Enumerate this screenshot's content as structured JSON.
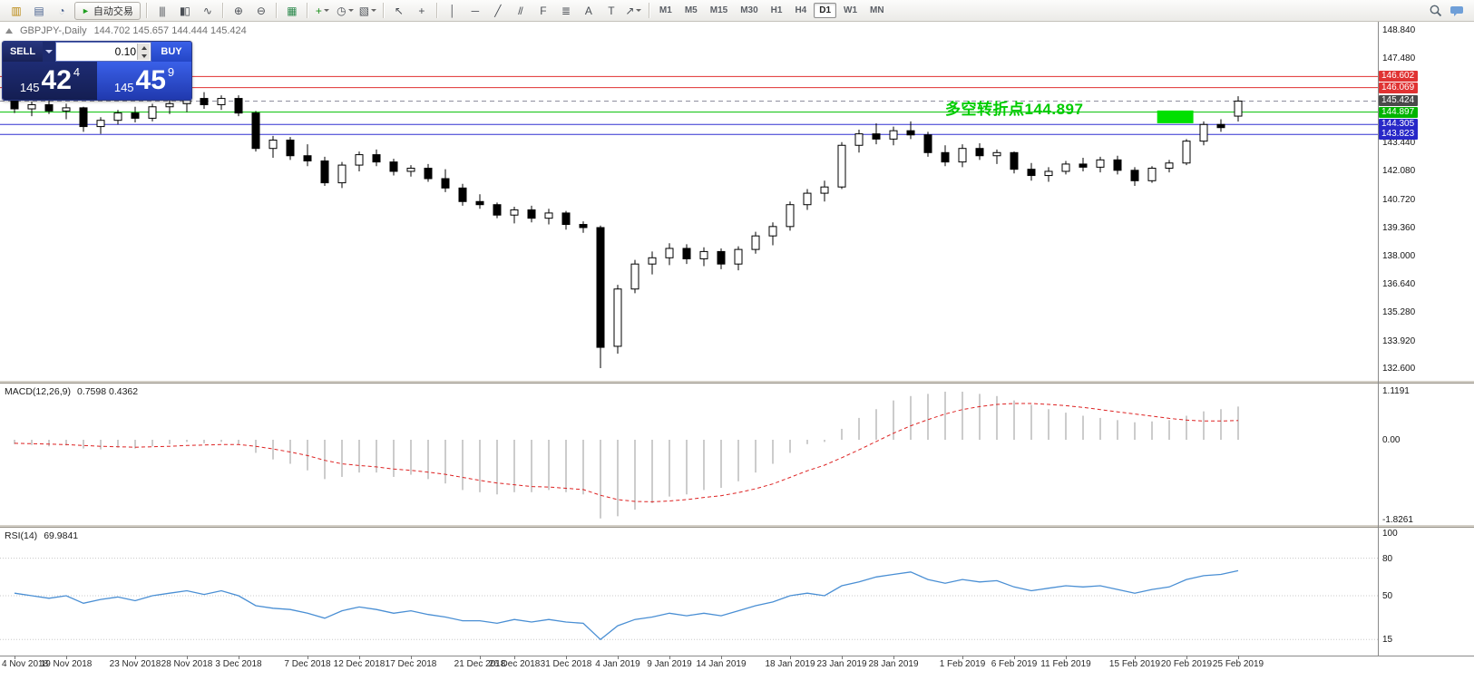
{
  "toolbar": {
    "autotrading": {
      "label": "自动交易",
      "glyph": "►"
    },
    "groups": [
      [
        {
          "name": "new-chart-icon",
          "glyph": "▥",
          "color": "#b8860b"
        },
        {
          "name": "profiles-icon",
          "glyph": "▤",
          "color": "#4a6390"
        },
        {
          "name": "refresh-icon",
          "glyph": "◔",
          "color": "#4a6390"
        },
        {
          "name": "autotrading-button",
          "type": "autotrading"
        }
      ],
      [
        {
          "name": "bar-chart-icon",
          "glyph": "|||"
        },
        {
          "name": "candlestick-chart-icon",
          "glyph": "▮▯"
        },
        {
          "name": "line-chart-icon",
          "glyph": "∿"
        }
      ],
      [
        {
          "name": "zoom-in-icon",
          "glyph": "⊕"
        },
        {
          "name": "zoom-out-icon",
          "glyph": "⊖"
        }
      ],
      [
        {
          "name": "tile-windows-icon",
          "glyph": "▦",
          "color": "#2d8a4e"
        }
      ],
      [
        {
          "name": "indicators-icon",
          "glyph": "+",
          "color": "#1a8f1a",
          "dd": true
        },
        {
          "name": "periods-icon",
          "glyph": "◷",
          "dd": true
        },
        {
          "name": "templates-icon",
          "glyph": "▧",
          "dd": true
        }
      ],
      [
        {
          "name": "cursor-icon",
          "glyph": "↖"
        },
        {
          "name": "crosshair-icon",
          "glyph": "+"
        }
      ],
      [
        {
          "name": "vertical-line-icon",
          "glyph": "│"
        },
        {
          "name": "horizontal-line-icon",
          "glyph": "─"
        },
        {
          "name": "trendline-icon",
          "glyph": "╱"
        },
        {
          "name": "channel-icon",
          "glyph": "//"
        },
        {
          "name": "fibonacci-icon",
          "glyph": "F"
        },
        {
          "name": "objects-grid-icon",
          "glyph": "≣"
        },
        {
          "name": "text-icon",
          "glyph": "A"
        },
        {
          "name": "text-label-icon",
          "glyph": "T"
        },
        {
          "name": "arrows-icon",
          "glyph": "↗",
          "dd": true
        }
      ]
    ],
    "timeframes": [
      "M1",
      "M5",
      "M15",
      "M30",
      "H1",
      "H4",
      "D1",
      "W1",
      "MN"
    ],
    "active_timeframe": "D1",
    "right_icons": [
      {
        "name": "search-icon",
        "svg": "magnifier"
      },
      {
        "name": "community-chat-icon",
        "svg": "bubble"
      }
    ]
  },
  "chart": {
    "header": {
      "symbol": "GBPJPY-,Daily",
      "ohlc": "144.702 145.657 144.444 145.424"
    }
  },
  "trade_panel": {
    "sell_label": "SELL",
    "buy_label": "BUY",
    "volume": "0.10",
    "sell_price": {
      "prefix": "145",
      "big": "42",
      "sup": "4"
    },
    "buy_price": {
      "prefix": "145",
      "big": "45",
      "sup": "9"
    }
  },
  "chart_data": {
    "type": "candlestick",
    "title": "GBPJPY- Daily",
    "y_axis_labels": [
      "148.840",
      "147.480",
      "146.120",
      "144.760",
      "143.440",
      "142.080",
      "140.720",
      "139.360",
      "138.000",
      "136.640",
      "135.280",
      "133.920",
      "132.600"
    ],
    "y_range": [
      132.42,
      149.0
    ],
    "grid": false,
    "date_labels": [
      {
        "text": "4 Nov 2018",
        "i": 0
      },
      {
        "text": "19 Nov 2018",
        "i": 3
      },
      {
        "text": "23 Nov 2018",
        "i": 7
      },
      {
        "text": "28 Nov 2018",
        "i": 10
      },
      {
        "text": "3 Dec 2018",
        "i": 13
      },
      {
        "text": "7 Dec 2018",
        "i": 17
      },
      {
        "text": "12 Dec 2018",
        "i": 20
      },
      {
        "text": "17 Dec 2018",
        "i": 23
      },
      {
        "text": "21 Dec 2018",
        "i": 27
      },
      {
        "text": "26 Dec 2018",
        "i": 29
      },
      {
        "text": "31 Dec 2018",
        "i": 32
      },
      {
        "text": "4 Jan 2019",
        "i": 35
      },
      {
        "text": "9 Jan 2019",
        "i": 38
      },
      {
        "text": "14 Jan 2019",
        "i": 41
      },
      {
        "text": "18 Jan 2019",
        "i": 45
      },
      {
        "text": "23 Jan 2019",
        "i": 48
      },
      {
        "text": "28 Jan 2019",
        "i": 51
      },
      {
        "text": "1 Feb 2019",
        "i": 55
      },
      {
        "text": "6 Feb 2019",
        "i": 58
      },
      {
        "text": "11 Feb 2019",
        "i": 61
      },
      {
        "text": "15 Feb 2019",
        "i": 65
      },
      {
        "text": "20 Feb 2019",
        "i": 68
      },
      {
        "text": "25 Feb 2019",
        "i": 71
      }
    ],
    "candles": [
      [
        145.7,
        145.8,
        144.85,
        145.05
      ],
      [
        145.05,
        145.4,
        144.7,
        145.25
      ],
      [
        145.25,
        145.45,
        144.8,
        144.95
      ],
      [
        144.95,
        145.3,
        144.55,
        145.1
      ],
      [
        145.1,
        145.15,
        143.95,
        144.2
      ],
      [
        144.2,
        144.65,
        143.85,
        144.5
      ],
      [
        144.5,
        145.0,
        144.3,
        144.85
      ],
      [
        144.85,
        145.15,
        144.4,
        144.6
      ],
      [
        144.6,
        145.3,
        144.45,
        145.15
      ],
      [
        145.15,
        145.5,
        144.8,
        145.3
      ],
      [
        145.3,
        145.75,
        144.9,
        145.55
      ],
      [
        145.55,
        145.85,
        145.05,
        145.25
      ],
      [
        145.25,
        145.7,
        145.0,
        145.55
      ],
      [
        145.55,
        145.7,
        144.7,
        144.85
      ],
      [
        144.85,
        144.95,
        143.0,
        143.15
      ],
      [
        143.15,
        143.75,
        142.7,
        143.55
      ],
      [
        143.55,
        143.7,
        142.6,
        142.8
      ],
      [
        142.8,
        143.35,
        142.3,
        142.55
      ],
      [
        142.55,
        142.75,
        141.35,
        141.5
      ],
      [
        141.5,
        142.5,
        141.25,
        142.35
      ],
      [
        142.35,
        143.0,
        142.05,
        142.85
      ],
      [
        142.85,
        143.1,
        142.3,
        142.5
      ],
      [
        142.5,
        142.65,
        141.85,
        142.05
      ],
      [
        142.05,
        142.35,
        141.8,
        142.2
      ],
      [
        142.2,
        142.4,
        141.55,
        141.7
      ],
      [
        141.7,
        142.15,
        141.05,
        141.25
      ],
      [
        141.25,
        141.45,
        140.4,
        140.6
      ],
      [
        140.6,
        140.95,
        140.25,
        140.45
      ],
      [
        140.45,
        140.55,
        139.8,
        139.95
      ],
      [
        139.95,
        140.35,
        139.55,
        140.2
      ],
      [
        140.2,
        140.4,
        139.6,
        139.8
      ],
      [
        139.8,
        140.25,
        139.5,
        140.05
      ],
      [
        140.05,
        140.15,
        139.25,
        139.5
      ],
      [
        139.5,
        139.65,
        139.1,
        139.35
      ],
      [
        139.35,
        139.45,
        132.6,
        133.6
      ],
      [
        133.65,
        136.6,
        133.3,
        136.4
      ],
      [
        136.4,
        137.8,
        136.2,
        137.6
      ],
      [
        137.6,
        138.2,
        137.1,
        137.9
      ],
      [
        137.9,
        138.6,
        137.55,
        138.35
      ],
      [
        138.35,
        138.55,
        137.6,
        137.85
      ],
      [
        137.85,
        138.4,
        137.5,
        138.2
      ],
      [
        138.2,
        138.35,
        137.35,
        137.6
      ],
      [
        137.6,
        138.45,
        137.3,
        138.3
      ],
      [
        138.3,
        139.15,
        138.1,
        138.95
      ],
      [
        138.95,
        139.6,
        138.5,
        139.4
      ],
      [
        139.4,
        140.6,
        139.2,
        140.45
      ],
      [
        140.45,
        141.2,
        140.2,
        141.0
      ],
      [
        141.0,
        141.6,
        140.6,
        141.3
      ],
      [
        141.3,
        143.45,
        141.2,
        143.3
      ],
      [
        143.3,
        144.05,
        142.95,
        143.85
      ],
      [
        143.85,
        144.35,
        143.35,
        143.6
      ],
      [
        143.6,
        144.2,
        143.3,
        144.0
      ],
      [
        144.0,
        144.45,
        143.6,
        143.8
      ],
      [
        143.8,
        143.95,
        142.75,
        142.95
      ],
      [
        142.95,
        143.3,
        142.3,
        142.5
      ],
      [
        142.5,
        143.35,
        142.25,
        143.15
      ],
      [
        143.15,
        143.4,
        142.6,
        142.8
      ],
      [
        142.8,
        143.1,
        142.4,
        142.95
      ],
      [
        142.95,
        143.0,
        141.95,
        142.15
      ],
      [
        142.15,
        142.45,
        141.6,
        141.85
      ],
      [
        141.85,
        142.25,
        141.55,
        142.05
      ],
      [
        142.05,
        142.55,
        141.9,
        142.4
      ],
      [
        142.4,
        142.7,
        142.05,
        142.25
      ],
      [
        142.25,
        142.75,
        142.0,
        142.6
      ],
      [
        142.6,
        142.8,
        141.9,
        142.1
      ],
      [
        142.1,
        142.25,
        141.35,
        141.6
      ],
      [
        141.6,
        142.3,
        141.5,
        142.2
      ],
      [
        142.2,
        142.6,
        142.0,
        142.45
      ],
      [
        142.45,
        143.6,
        142.35,
        143.5
      ],
      [
        143.5,
        144.45,
        143.3,
        144.3
      ],
      [
        144.3,
        144.55,
        143.95,
        144.15
      ],
      [
        144.702,
        145.657,
        144.444,
        145.424
      ]
    ],
    "levels": [
      {
        "price": "146.602",
        "color": "#e03030",
        "style": "solid"
      },
      {
        "price": "146.069",
        "color": "#e03030",
        "style": "solid"
      },
      {
        "price": "145.424",
        "color": "#8e8e9e",
        "style": "dashed"
      },
      {
        "price": "144.897",
        "color": "#00c000",
        "style": "solid"
      },
      {
        "price": "144.305",
        "color": "#3030d0",
        "style": "solid"
      },
      {
        "price": "143.823",
        "color": "#3030d0",
        "style": "solid"
      }
    ],
    "price_tags": [
      {
        "text": "146.602",
        "bg": "#e03232"
      },
      {
        "text": "146.069",
        "bg": "#e03232"
      },
      {
        "text": "145.424",
        "bg": "#4a4a4a"
      },
      {
        "text": "144.897",
        "bg": "#00b400"
      },
      {
        "text": "144.305",
        "bg": "#2828c8"
      },
      {
        "text": "143.823",
        "bg": "#2828c8"
      }
    ],
    "rect_object": {
      "from_index": 66.3,
      "to_index": 68.4,
      "price_top": 144.97,
      "price_bottom": 144.36,
      "color": "#00e000"
    },
    "annotation": {
      "text": "多空转折点144.897",
      "color": "#00cc00"
    },
    "candle_colors": {
      "bull_fill": "#ffffff",
      "bear_fill": "#000000",
      "outline": "#000000"
    },
    "macd": {
      "name": "MACD(12,26,9)",
      "values_text": "0.7598 0.4362",
      "scale_labels": [
        "1.1191",
        "0.00",
        "-1.8261"
      ],
      "range": [
        -1.8261,
        1.1191
      ],
      "histogram_color": "#bfbfbf",
      "signal_color": "#dd2222",
      "histogram": [
        -0.1,
        -0.12,
        -0.15,
        -0.13,
        -0.2,
        -0.22,
        -0.18,
        -0.2,
        -0.15,
        -0.1,
        -0.05,
        -0.08,
        -0.05,
        -0.1,
        -0.3,
        -0.45,
        -0.55,
        -0.7,
        -0.9,
        -0.85,
        -0.75,
        -0.75,
        -0.85,
        -0.8,
        -0.9,
        -1.0,
        -1.15,
        -1.2,
        -1.25,
        -1.2,
        -1.2,
        -1.15,
        -1.2,
        -1.25,
        -1.8,
        -1.75,
        -1.6,
        -1.45,
        -1.3,
        -1.25,
        -1.15,
        -1.1,
        -0.95,
        -0.75,
        -0.55,
        -0.3,
        -0.1,
        -0.05,
        0.25,
        0.5,
        0.7,
        0.9,
        1.0,
        1.05,
        1.1,
        1.1,
        1.05,
        1.0,
        0.9,
        0.8,
        0.7,
        0.62,
        0.55,
        0.5,
        0.45,
        0.4,
        0.42,
        0.45,
        0.55,
        0.65,
        0.7,
        0.76
      ],
      "signal": [
        -0.08,
        -0.09,
        -0.1,
        -0.11,
        -0.13,
        -0.15,
        -0.16,
        -0.17,
        -0.16,
        -0.15,
        -0.13,
        -0.12,
        -0.11,
        -0.11,
        -0.15,
        -0.21,
        -0.28,
        -0.36,
        -0.47,
        -0.55,
        -0.59,
        -0.62,
        -0.67,
        -0.7,
        -0.74,
        -0.79,
        -0.86,
        -0.93,
        -0.99,
        -1.03,
        -1.07,
        -1.08,
        -1.11,
        -1.14,
        -1.27,
        -1.37,
        -1.41,
        -1.42,
        -1.4,
        -1.37,
        -1.32,
        -1.28,
        -1.21,
        -1.12,
        -1.01,
        -0.86,
        -0.71,
        -0.58,
        -0.41,
        -0.23,
        -0.04,
        0.15,
        0.32,
        0.46,
        0.59,
        0.69,
        0.76,
        0.81,
        0.83,
        0.83,
        0.81,
        0.78,
        0.74,
        0.69,
        0.64,
        0.59,
        0.54,
        0.49,
        0.45,
        0.43,
        0.43,
        0.44
      ]
    },
    "rsi": {
      "name": "RSI(14)",
      "value_text": "69.9841",
      "scale_labels": [
        "100",
        "80",
        "50",
        "15"
      ],
      "levels": [
        80,
        50,
        15
      ],
      "line_color": "#4a8fd4",
      "values": [
        52,
        50,
        48,
        50,
        44,
        47,
        49,
        46,
        50,
        52,
        54,
        51,
        54,
        50,
        42,
        40,
        39,
        36,
        32,
        38,
        41,
        39,
        36,
        38,
        35,
        33,
        30,
        30,
        28,
        31,
        29,
        31,
        29,
        28,
        15,
        26,
        31,
        33,
        36,
        34,
        36,
        34,
        38,
        42,
        45,
        50,
        52,
        50,
        58,
        61,
        65,
        67,
        69,
        63,
        60,
        63,
        61,
        62,
        57,
        54,
        56,
        58,
        57,
        58,
        55,
        52,
        55,
        57,
        63,
        66,
        67,
        70
      ]
    }
  }
}
